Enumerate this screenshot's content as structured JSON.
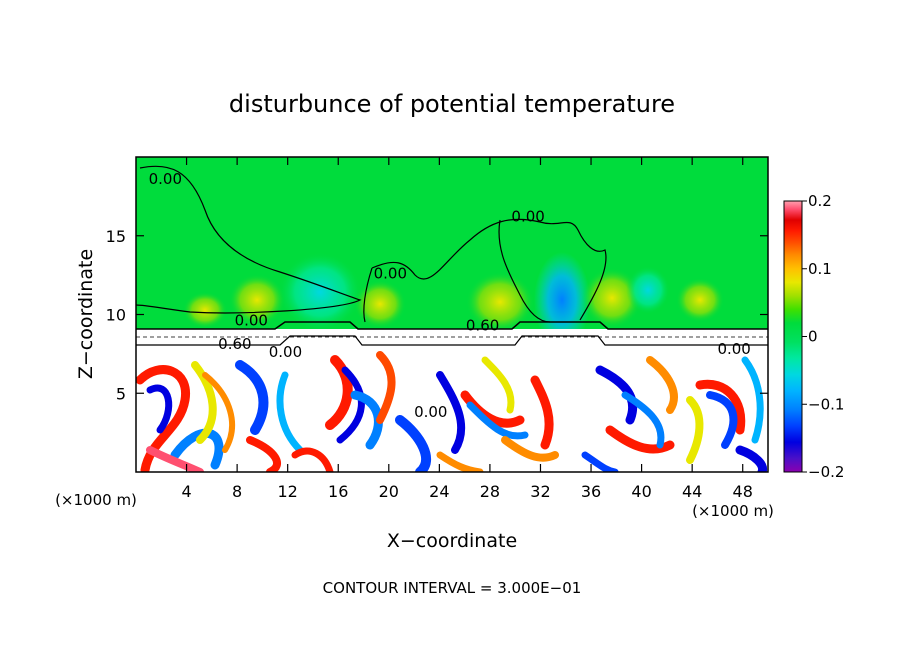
{
  "chart_data": {
    "type": "heatmap",
    "title": "disturbunce of potential temperature",
    "xlabel": "X−coordinate",
    "ylabel": "Z−coordinate",
    "x_unit": "(×1000 m)",
    "y_unit": "(×1000 m)",
    "xlim": [
      0,
      50
    ],
    "ylim": [
      0,
      20
    ],
    "x_ticks": [
      4,
      8,
      12,
      16,
      20,
      24,
      28,
      32,
      36,
      40,
      44,
      48
    ],
    "y_ticks": [
      5,
      10,
      15
    ],
    "footer": "CONTOUR INTERVAL = 3.000E−01",
    "colorbar": {
      "min": -0.2,
      "max": 0.2,
      "ticks": [
        0.2,
        0.1,
        0,
        -0.1,
        -0.2
      ],
      "tick_labels": [
        "0.2",
        "0.1",
        "0",
        "−0.1",
        "−0.2"
      ],
      "colors": [
        "#8b00b0",
        "#4a10c8",
        "#0000e0",
        "#0040ff",
        "#0080ff",
        "#00b4ff",
        "#00d8e0",
        "#00e8a0",
        "#00e060",
        "#00dc3c",
        "#40e000",
        "#a0e000",
        "#e8e800",
        "#ffc000",
        "#ff8c00",
        "#ff4a00",
        "#ff1a00",
        "#e00000",
        "#ff5070",
        "#ffa0b0"
      ]
    },
    "contour_labels": [
      {
        "text": "0.00",
        "x": 1.0,
        "y": 18.3
      },
      {
        "text": "0.00",
        "x": 29.7,
        "y": 15.9
      },
      {
        "text": "0.00",
        "x": 18.8,
        "y": 12.3
      },
      {
        "text": "0.00",
        "x": 7.8,
        "y": 9.3
      },
      {
        "text": "0.60",
        "x": 26.1,
        "y": 9.0
      },
      {
        "text": "0.60",
        "x": 6.5,
        "y": 7.8
      },
      {
        "text": "0.00",
        "x": 10.5,
        "y": 7.3
      },
      {
        "text": "0.00",
        "x": 22.0,
        "y": 3.5
      },
      {
        "text": "0.00",
        "x": 46.0,
        "y": 7.5
      }
    ]
  }
}
